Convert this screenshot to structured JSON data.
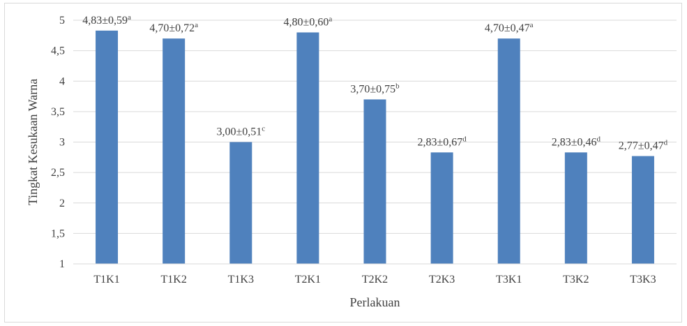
{
  "chart_data": {
    "type": "bar",
    "title": "",
    "xlabel": "Perlakuan",
    "ylabel": "Tingkat Kesukaan Warna",
    "ylim": [
      1,
      5
    ],
    "yticks": [
      "1",
      "1,5",
      "2",
      "2,5",
      "3",
      "3,5",
      "4",
      "4,5",
      "5"
    ],
    "ytick_values": [
      1,
      1.5,
      2,
      2.5,
      3,
      3.5,
      4,
      4.5,
      5
    ],
    "grid": "horizontal",
    "bar_color": "#4f81bd",
    "categories": [
      "T1K1",
      "T1K2",
      "T1K3",
      "T2K1",
      "T2K2",
      "T2K3",
      "T3K1",
      "T3K2",
      "T3K3"
    ],
    "values": [
      4.83,
      4.7,
      3.0,
      4.8,
      3.7,
      2.83,
      4.7,
      2.83,
      2.77
    ],
    "labels": [
      "4,83±0,59",
      "4,70±0,72",
      "3,00±0,51",
      "4,80±0,60",
      "3,70±0,75",
      "2,83±0,67",
      "4,70±0,47",
      "2,83±0,46",
      "2,77±0,47"
    ],
    "label_letters": [
      "a",
      "a",
      "c",
      "a",
      "b",
      "d",
      "a",
      "d",
      "d"
    ]
  }
}
